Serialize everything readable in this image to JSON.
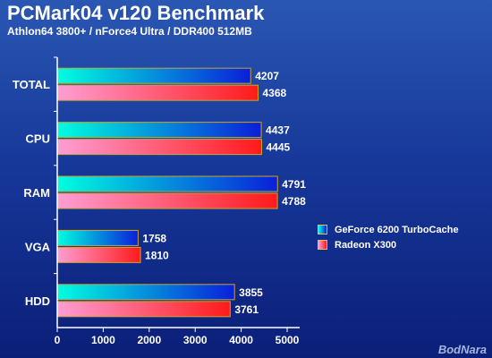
{
  "header": {
    "title": "PCMark04 v120 Benchmark",
    "subtitle": "Athlon64 3800+ / nForce4 Ultra / DDR400 512MB"
  },
  "watermark": "BodNara",
  "colors": {
    "series1_start": "#00ffe0",
    "series1_end": "#0a1fd9",
    "series2_start": "#ff9ed4",
    "series2_end": "#ff1a1a",
    "bar_border": "#c8a52a",
    "axis": "#ffffff"
  },
  "chart_data": {
    "type": "bar",
    "orientation": "horizontal",
    "title": "PCMark04 v120 Benchmark",
    "subtitle": "Athlon64 3800+ / nForce4 Ultra / DDR400 512MB",
    "categories": [
      "TOTAL",
      "CPU",
      "RAM",
      "VGA",
      "HDD"
    ],
    "series": [
      {
        "name": "GeForce 6200 TurboCache",
        "values": [
          4207,
          4437,
          4791,
          1758,
          3855
        ]
      },
      {
        "name": "Radeon X300",
        "values": [
          4368,
          4445,
          4788,
          1810,
          3761
        ]
      }
    ],
    "xlim": [
      0,
      5000
    ],
    "xticks": [
      "0",
      "1000",
      "2000",
      "3000",
      "4000",
      "5000"
    ],
    "xlabel": "",
    "ylabel": "",
    "grid": false,
    "legend": "right"
  }
}
